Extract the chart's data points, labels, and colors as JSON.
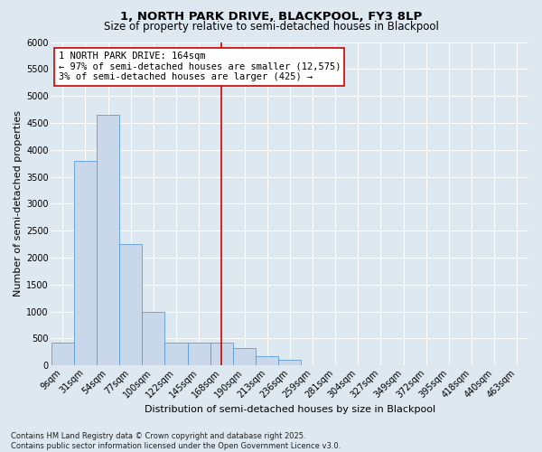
{
  "title1": "1, NORTH PARK DRIVE, BLACKPOOL, FY3 8LP",
  "title2": "Size of property relative to semi-detached houses in Blackpool",
  "xlabel": "Distribution of semi-detached houses by size in Blackpool",
  "ylabel": "Number of semi-detached properties",
  "footnote1": "Contains HM Land Registry data © Crown copyright and database right 2025.",
  "footnote2": "Contains public sector information licensed under the Open Government Licence v3.0.",
  "bar_labels": [
    "9sqm",
    "31sqm",
    "54sqm",
    "77sqm",
    "100sqm",
    "122sqm",
    "145sqm",
    "168sqm",
    "190sqm",
    "213sqm",
    "236sqm",
    "259sqm",
    "281sqm",
    "304sqm",
    "327sqm",
    "349sqm",
    "372sqm",
    "395sqm",
    "418sqm",
    "440sqm",
    "463sqm"
  ],
  "bar_values": [
    430,
    3800,
    4650,
    2250,
    1000,
    430,
    430,
    430,
    330,
    165,
    100,
    0,
    0,
    0,
    0,
    0,
    0,
    0,
    0,
    0,
    0
  ],
  "bar_color": "#c8d8ea",
  "bar_edge_color": "#5b9bd5",
  "vline_index": 7,
  "vline_color": "#cc0000",
  "annotation_text": "1 NORTH PARK DRIVE: 164sqm\n← 97% of semi-detached houses are smaller (12,575)\n3% of semi-detached houses are larger (425) →",
  "annotation_box_facecolor": "#ffffff",
  "annotation_box_edgecolor": "#cc0000",
  "ylim": [
    0,
    6000
  ],
  "yticks": [
    0,
    500,
    1000,
    1500,
    2000,
    2500,
    3000,
    3500,
    4000,
    4500,
    5000,
    5500,
    6000
  ],
  "background_color": "#dde8f0",
  "grid_color": "#ffffff",
  "title_fontsize": 9.5,
  "subtitle_fontsize": 8.5,
  "ylabel_fontsize": 8,
  "xlabel_fontsize": 8,
  "tick_fontsize": 7,
  "footnote_fontsize": 6,
  "annotation_fontsize": 7.5
}
